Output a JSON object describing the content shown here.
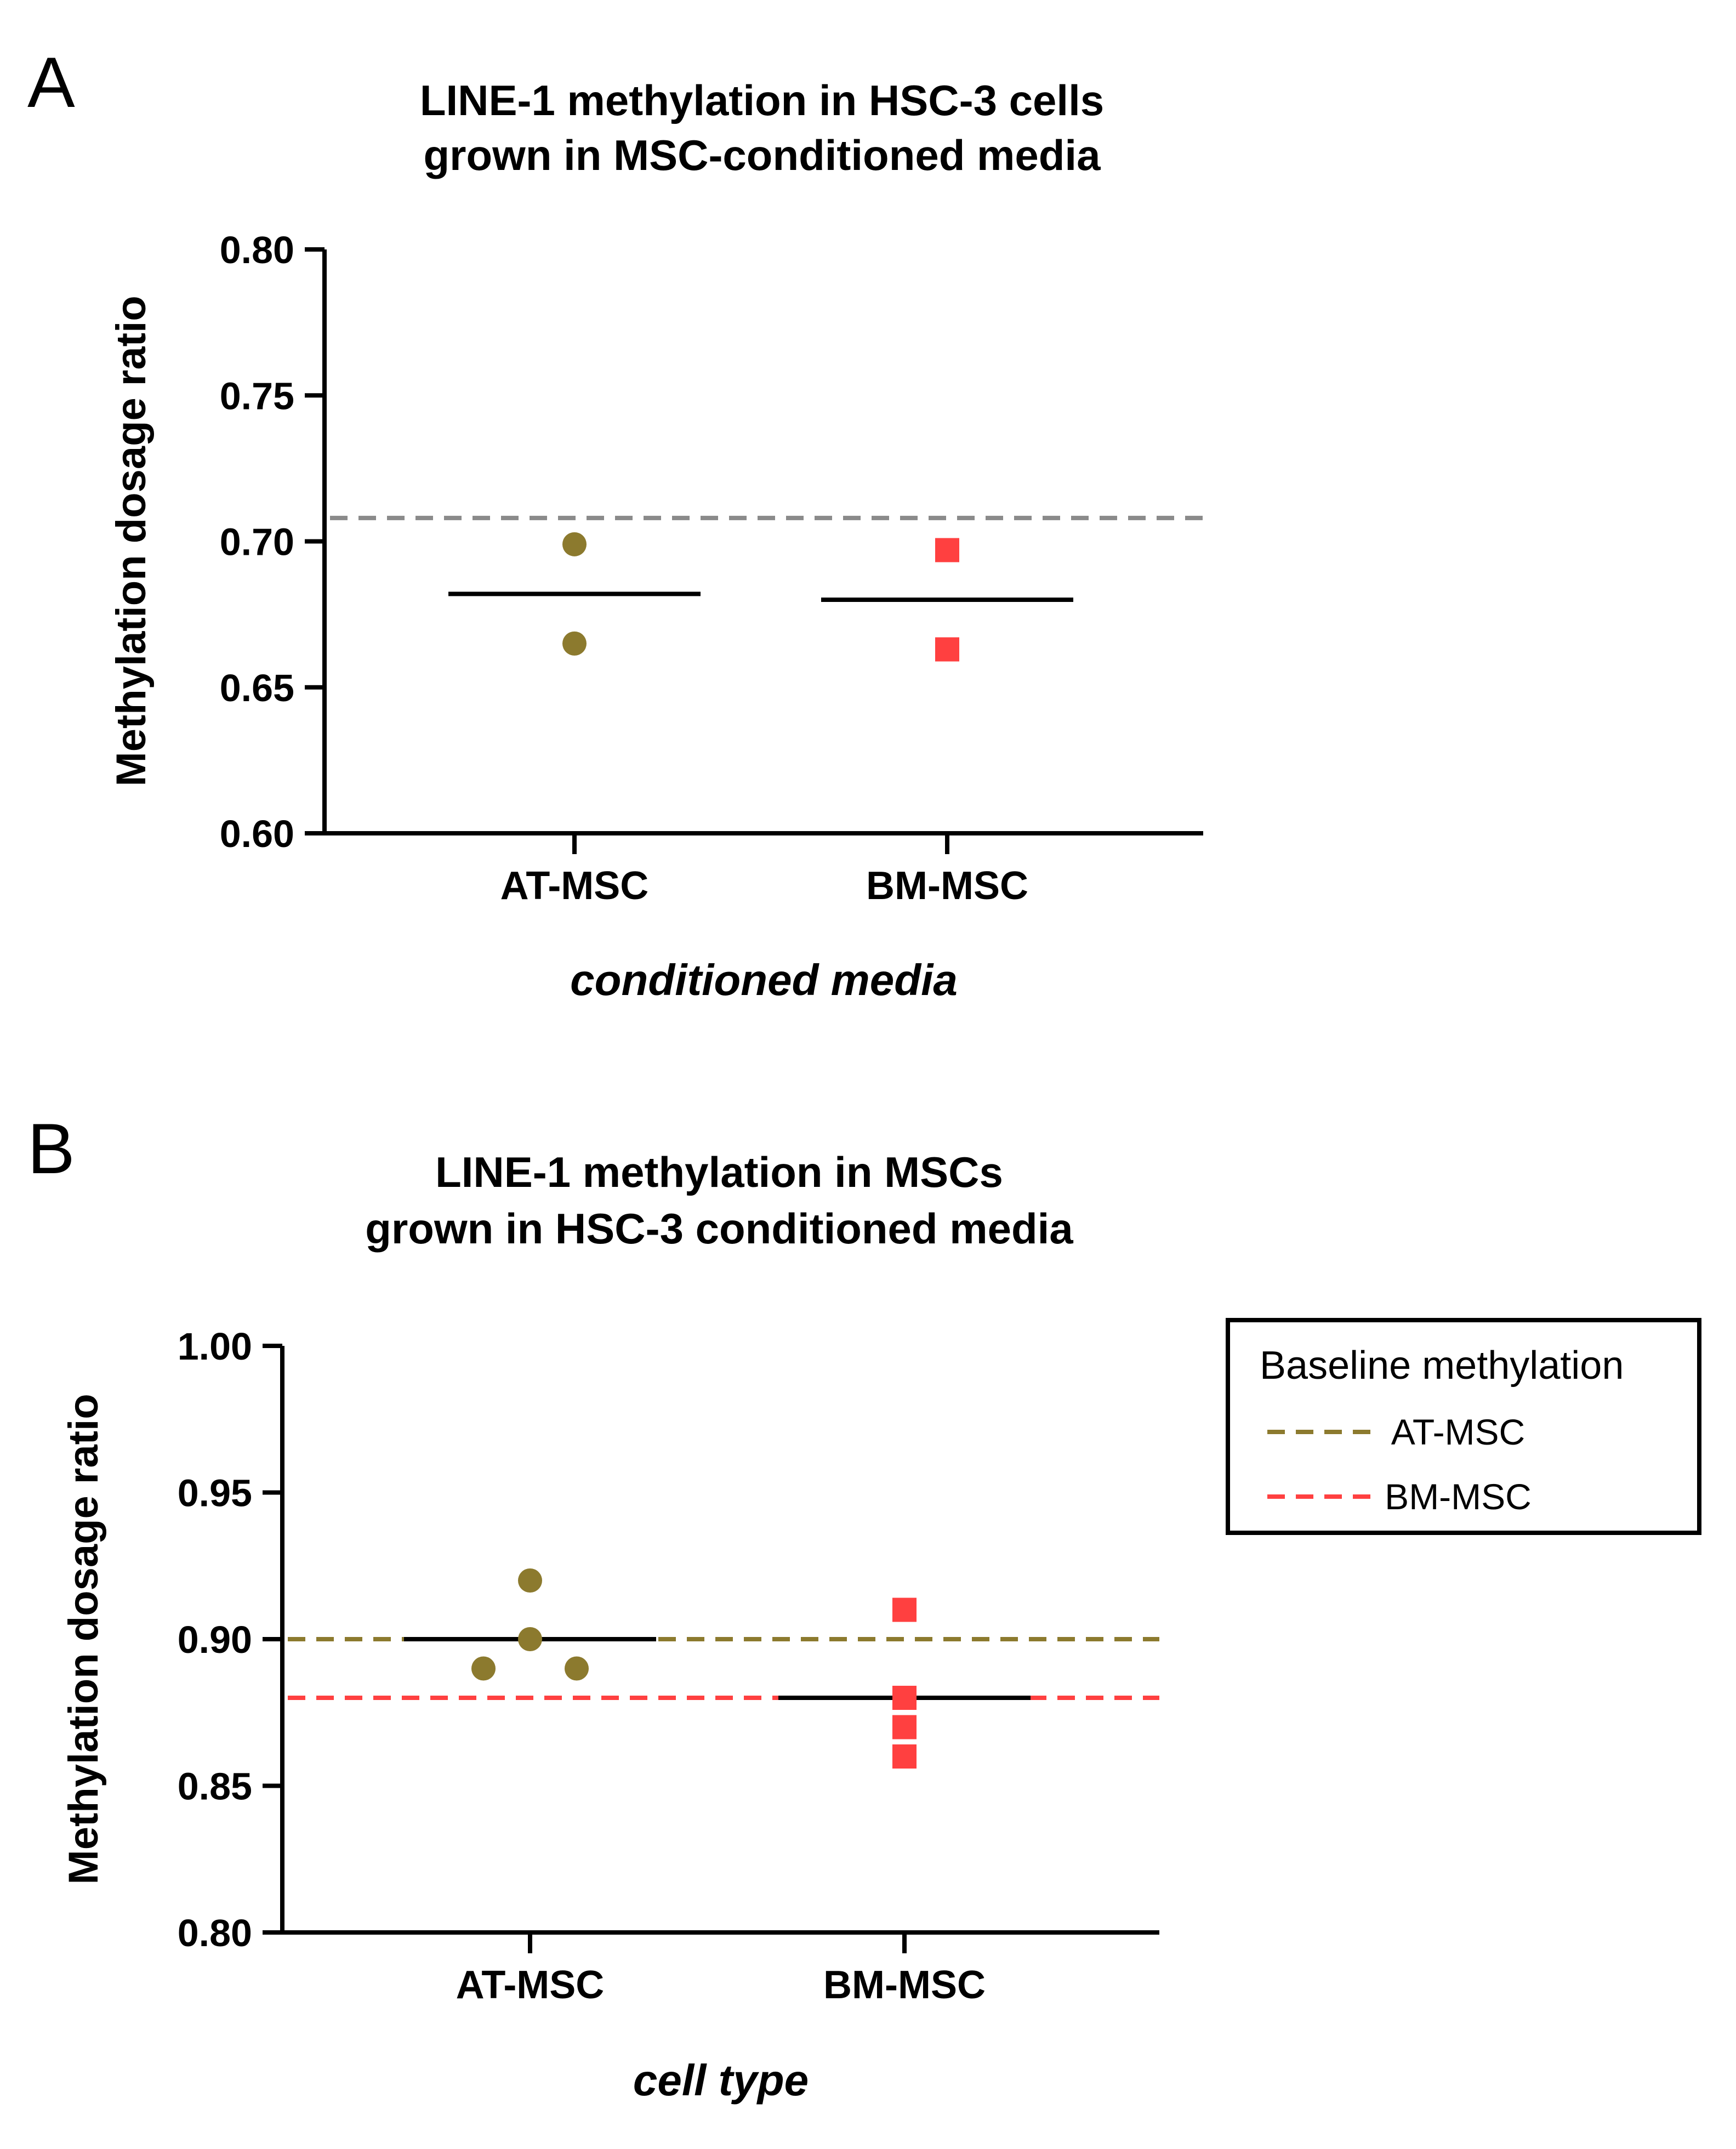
{
  "chart_data": [
    {
      "panel": "A",
      "type": "scatter",
      "title": [
        "LINE-1 methylation in HSC-3 cells",
        "grown in MSC-conditioned media"
      ],
      "xlabel": "conditioned media",
      "ylabel": "Methylation dosage ratio",
      "ylim": [
        0.6,
        0.8
      ],
      "yticks": [
        "0.60",
        "0.65",
        "0.70",
        "0.75",
        "0.80"
      ],
      "categories": [
        "AT-MSC",
        "BM-MSC"
      ],
      "series": [
        {
          "name": "AT-MSC",
          "marker": "circle",
          "color": "#8C7A2E",
          "values": [
            0.699,
            0.665
          ],
          "mean": 0.682
        },
        {
          "name": "BM-MSC",
          "marker": "square",
          "color": "#FF4040",
          "values": [
            0.697,
            0.663
          ],
          "mean": 0.68
        }
      ],
      "reference_lines": [
        {
          "name": "baseline",
          "value": 0.708,
          "color": "#8A8A8A",
          "dashed": true
        }
      ]
    },
    {
      "panel": "B",
      "type": "scatter",
      "title": [
        "LINE-1 methylation in MSCs",
        "grown in HSC-3 conditioned media"
      ],
      "xlabel": "cell type",
      "ylabel": "Methylation dosage ratio",
      "ylim": [
        0.8,
        1.0
      ],
      "yticks": [
        "0.80",
        "0.85",
        "0.90",
        "0.95",
        "1.00"
      ],
      "categories": [
        "AT-MSC",
        "BM-MSC"
      ],
      "series": [
        {
          "name": "AT-MSC",
          "marker": "circle",
          "color": "#8C7A2E",
          "values": [
            0.92,
            0.9,
            0.89,
            0.89
          ],
          "mean": 0.9
        },
        {
          "name": "BM-MSC",
          "marker": "square",
          "color": "#FF4040",
          "values": [
            0.91,
            0.88,
            0.87,
            0.86
          ],
          "mean": 0.88
        }
      ],
      "reference_lines": [
        {
          "name": "AT-MSC",
          "value": 0.9,
          "color": "#8C7A2E",
          "dashed": true
        },
        {
          "name": "BM-MSC",
          "value": 0.88,
          "color": "#FF4040",
          "dashed": true
        }
      ],
      "legend": {
        "title": "Baseline methylation",
        "position": "right",
        "items": [
          {
            "label": "AT-MSC",
            "color": "#8C7A2E"
          },
          {
            "label": "BM-MSC",
            "color": "#FF4040"
          }
        ]
      }
    }
  ]
}
